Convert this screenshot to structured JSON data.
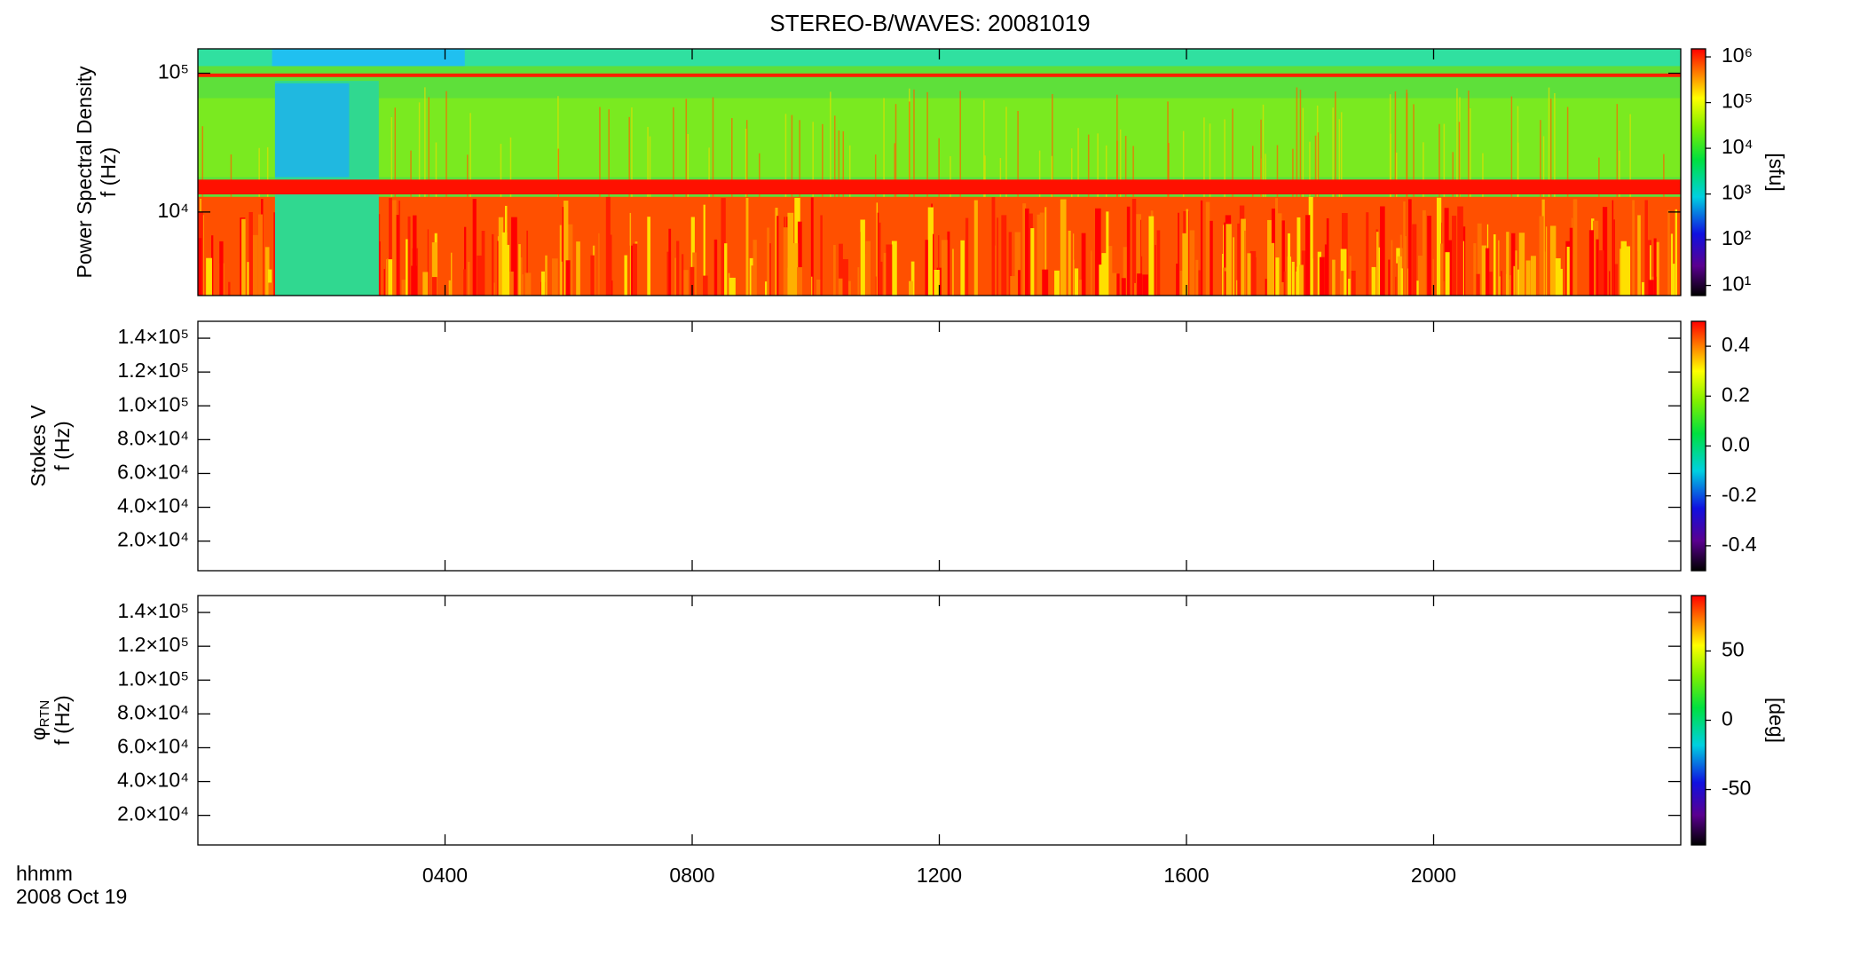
{
  "title": "STEREO-B/WAVES: 20081019",
  "x_label": [
    "hhmm",
    "2008 Oct 19"
  ],
  "chart_data": [
    {
      "type": "heatmap",
      "ylabel": [
        "Power Spectral Density",
        "f (Hz)"
      ],
      "ylog": true,
      "ylim": [
        2500,
        150000
      ],
      "yticks": [
        {
          "value": 10000,
          "label": "10⁴"
        },
        {
          "value": 100000,
          "label": "10⁵"
        }
      ],
      "xlim": [
        0,
        24
      ],
      "xticks": [
        4,
        8,
        12,
        16,
        20
      ],
      "colorbar": {
        "log": true,
        "lim": [
          6,
          1500000
        ],
        "ticks": [
          {
            "value": 10,
            "label": "10¹"
          },
          {
            "value": 100,
            "label": "10²"
          },
          {
            "value": 1000,
            "label": "10³"
          },
          {
            "value": 10000,
            "label": "10⁴"
          },
          {
            "value": 100000,
            "label": "10⁵"
          },
          {
            "value": 1000000,
            "label": "10⁶"
          }
        ],
        "label": "[sfu]"
      }
    },
    {
      "type": "heatmap",
      "ylabel": [
        "Stokes V",
        "f (Hz)"
      ],
      "ylog": false,
      "ylim": [
        2500,
        150000
      ],
      "yticks": [
        {
          "value": 20000,
          "label": "2.0×10⁴"
        },
        {
          "value": 40000,
          "label": "4.0×10⁴"
        },
        {
          "value": 60000,
          "label": "6.0×10⁴"
        },
        {
          "value": 80000,
          "label": "8.0×10⁴"
        },
        {
          "value": 100000,
          "label": "1.0×10⁵"
        },
        {
          "value": 120000,
          "label": "1.2×10⁵"
        },
        {
          "value": 140000,
          "label": "1.4×10⁵"
        }
      ],
      "xlim": [
        0,
        24
      ],
      "xticks": [
        4,
        8,
        12,
        16,
        20
      ],
      "colorbar": {
        "log": false,
        "lim": [
          -0.5,
          0.5
        ],
        "ticks": [
          {
            "value": -0.4,
            "label": "-0.4"
          },
          {
            "value": -0.2,
            "label": "-0.2"
          },
          {
            "value": 0,
            "label": "0.0"
          },
          {
            "value": 0.2,
            "label": "0.2"
          },
          {
            "value": 0.4,
            "label": "0.4"
          }
        ]
      }
    },
    {
      "type": "heatmap",
      "ylabel": [
        "φ",
        "f (Hz)"
      ],
      "ylabel_sub": "RTN",
      "ylog": false,
      "ylim": [
        2500,
        150000
      ],
      "yticks": [
        {
          "value": 20000,
          "label": "2.0×10⁴"
        },
        {
          "value": 40000,
          "label": "4.0×10⁴"
        },
        {
          "value": 60000,
          "label": "6.0×10⁴"
        },
        {
          "value": 80000,
          "label": "8.0×10⁴"
        },
        {
          "value": 100000,
          "label": "1.0×10⁵"
        },
        {
          "value": 120000,
          "label": "1.2×10⁵"
        },
        {
          "value": 140000,
          "label": "1.4×10⁵"
        }
      ],
      "xlim": [
        0,
        24
      ],
      "xticks": [
        {
          "value": 4,
          "label": "0400"
        },
        {
          "value": 8,
          "label": "0800"
        },
        {
          "value": 12,
          "label": "1200"
        },
        {
          "value": 16,
          "label": "1600"
        },
        {
          "value": 20,
          "label": "2000"
        }
      ],
      "colorbar": {
        "log": false,
        "lim": [
          -90,
          90
        ],
        "ticks": [
          -50,
          0,
          50
        ],
        "label": "[deg]"
      }
    }
  ]
}
